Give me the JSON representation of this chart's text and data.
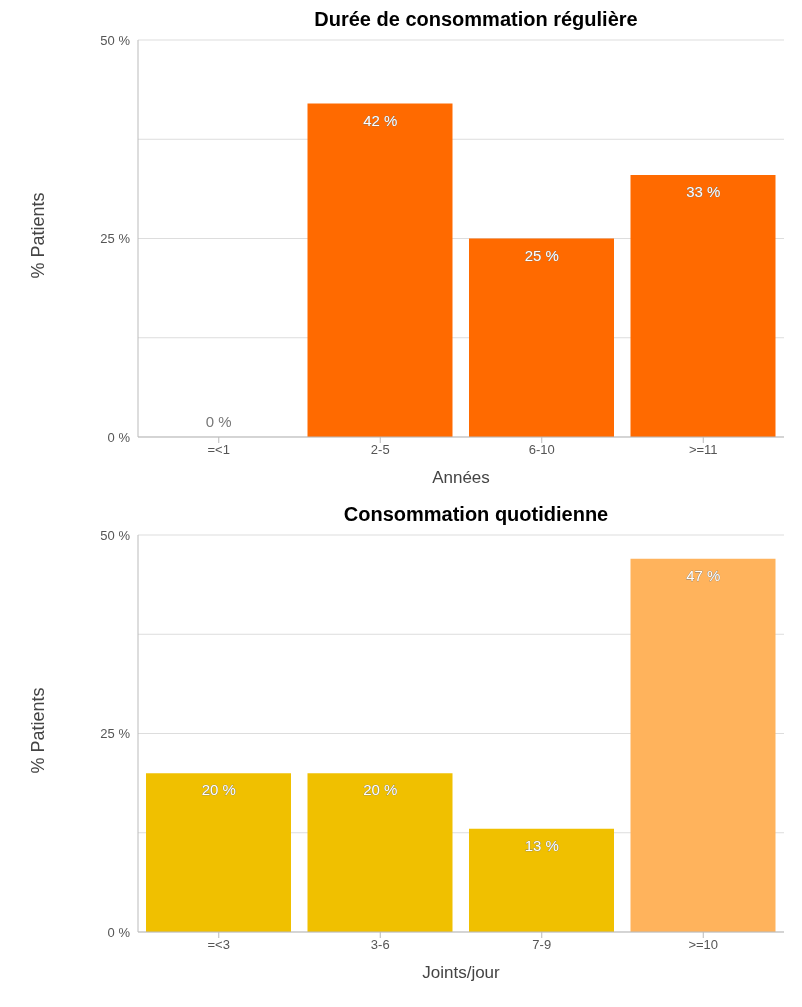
{
  "chart_data": [
    {
      "type": "bar",
      "title": "Durée de consommation régulière",
      "xlabel": "Années",
      "ylabel": "% Patients",
      "categories": [
        "=<1",
        "2-5",
        "6-10",
        ">=11"
      ],
      "values": [
        0,
        42,
        25,
        33
      ],
      "color": "#ff6a00",
      "value_labels": [
        "0 %",
        "42 %",
        "25 %",
        "33 %"
      ],
      "ylim": [
        0,
        50
      ],
      "yticks": [
        {
          "value": 0,
          "label": "0 %"
        },
        {
          "value": 12.5,
          "label": null
        },
        {
          "value": 25,
          "label": "25 %"
        },
        {
          "value": 37.5,
          "label": null
        },
        {
          "value": 50,
          "label": "50 %"
        }
      ],
      "grid": "y",
      "legend": false
    },
    {
      "type": "bar",
      "title": "Consommation quotidienne",
      "xlabel": "Joints/jour",
      "ylabel": "% Patients",
      "categories": [
        "=<3",
        "3-6",
        "7-9",
        ">=10"
      ],
      "values": [
        20,
        20,
        13,
        47
      ],
      "colors": [
        "#f0c000",
        "#f0c000",
        "#f0c000",
        "#ffb35c"
      ],
      "value_labels": [
        "20 %",
        "20 %",
        "13 %",
        "47 %"
      ],
      "ylim": [
        0,
        50
      ],
      "yticks": [
        {
          "value": 0,
          "label": "0 %"
        },
        {
          "value": 12.5,
          "label": null
        },
        {
          "value": 25,
          "label": "25 %"
        },
        {
          "value": 37.5,
          "label": null
        },
        {
          "value": 50,
          "label": "50 %"
        }
      ],
      "grid": "y",
      "legend": false
    }
  ]
}
